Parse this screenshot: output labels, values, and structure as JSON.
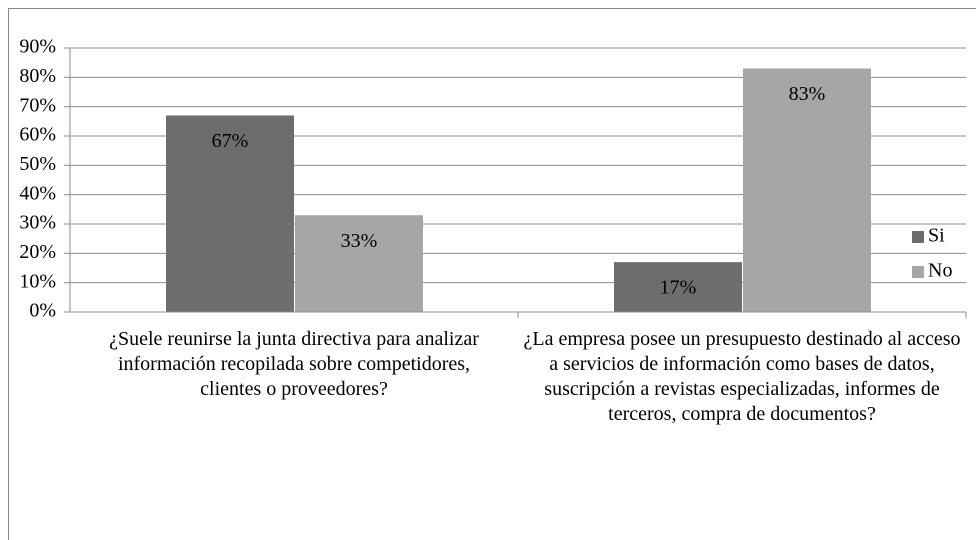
{
  "chart_data": {
    "type": "bar",
    "categories": [
      "¿Suele reunirse la junta directiva para analizar información recopilada sobre competidores, clientes o proveedores?",
      "¿La empresa posee un presupuesto destinado al acceso a servicios de información como bases de datos, suscripción a revistas especializadas, informes de terceros, compra de documentos?"
    ],
    "series": [
      {
        "name": "Si",
        "color": "#6d6d6d",
        "values": [
          67,
          17
        ],
        "value_labels": [
          "67%",
          "17%"
        ]
      },
      {
        "name": "No",
        "color": "#a6a6a6",
        "values": [
          33,
          83
        ],
        "value_labels": [
          "33%",
          "83%"
        ]
      }
    ],
    "ylim": [
      0,
      90
    ],
    "yticks": [
      {
        "value": 0,
        "label": "0%"
      },
      {
        "value": 10,
        "label": "10%"
      },
      {
        "value": 20,
        "label": "20%"
      },
      {
        "value": 30,
        "label": "30%"
      },
      {
        "value": 40,
        "label": "40%"
      },
      {
        "value": 50,
        "label": "50%"
      },
      {
        "value": 60,
        "label": "60%"
      },
      {
        "value": 70,
        "label": "70%"
      },
      {
        "value": 80,
        "label": "80%"
      },
      {
        "value": 90,
        "label": "90%"
      }
    ],
    "grid": true,
    "legend": "right"
  }
}
